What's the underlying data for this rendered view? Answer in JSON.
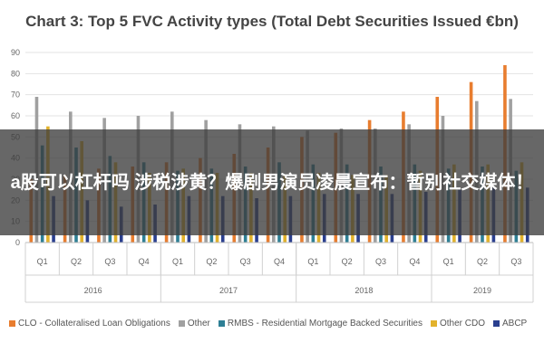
{
  "chart_data": {
    "type": "bar",
    "title": "Chart 3: Top 5 FVC Activity types (Total Debt Securities Issued €bn)",
    "ylim": [
      0,
      90
    ],
    "yticks": [
      0,
      10,
      20,
      30,
      40,
      50,
      60,
      70,
      80,
      90
    ],
    "grid": true,
    "legend_position": "bottom",
    "categories": [
      "Q1",
      "Q2",
      "Q3",
      "Q4",
      "Q1",
      "Q2",
      "Q3",
      "Q4",
      "Q1",
      "Q2",
      "Q3",
      "Q4",
      "Q1",
      "Q2",
      "Q3"
    ],
    "year_groups": [
      {
        "label": "2016",
        "count": 4
      },
      {
        "label": "2017",
        "count": 4
      },
      {
        "label": "2018",
        "count": 4
      },
      {
        "label": "2019",
        "count": 3
      }
    ],
    "series": [
      {
        "name": "CLO - Collateralised Loan Obligations",
        "color": "#e87d2f",
        "values": [
          30,
          32,
          35,
          36,
          38,
          40,
          42,
          45,
          50,
          52,
          58,
          62,
          69,
          76,
          84
        ]
      },
      {
        "name": "Other",
        "color": "#a0a0a0",
        "values": [
          69,
          62,
          59,
          60,
          62,
          58,
          56,
          55,
          53,
          54,
          54,
          56,
          60,
          67,
          68
        ]
      },
      {
        "name": "RMBS - Residential Mortgage Backed Securities",
        "color": "#2e7f95",
        "values": [
          46,
          45,
          41,
          38,
          34,
          35,
          36,
          38,
          37,
          37,
          36,
          37,
          35,
          36,
          34
        ]
      },
      {
        "name": "Other CDO",
        "color": "#e2b22c",
        "values": [
          55,
          48,
          38,
          33,
          35,
          33,
          33,
          32,
          33,
          32,
          32,
          34,
          37,
          37,
          38
        ]
      },
      {
        "name": "ABCP",
        "color": "#2a3f8f",
        "values": [
          22,
          20,
          17,
          18,
          22,
          22,
          21,
          22,
          23,
          23,
          23,
          24,
          25,
          26,
          26
        ]
      }
    ]
  },
  "overlay": {
    "text": "a股可以杠杆吗 涉税涉黄？爆剧男演员凌晨宣布：暂别社交媒体！"
  }
}
